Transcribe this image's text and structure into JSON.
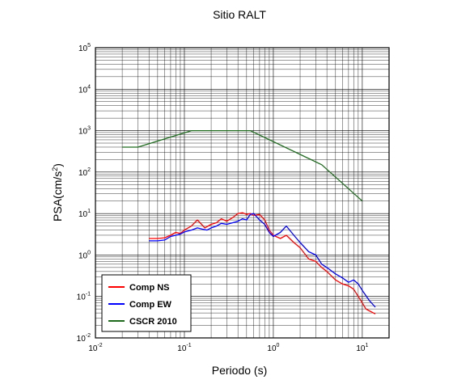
{
  "chart_data": {
    "type": "line",
    "title": "Sitio RALT",
    "xlabel": "Periodo (s)",
    "ylabel": {
      "base": "PSA(cm/s",
      "sup": "2",
      "close": ")"
    },
    "x_scale": "log",
    "y_scale": "log",
    "xlim": [
      0.01,
      20
    ],
    "ylim": [
      0.01,
      100000
    ],
    "grid": true,
    "legend_position": "bottom-left",
    "x_ticks": [
      {
        "base": "10",
        "exp": "-2",
        "value": 0.01
      },
      {
        "base": "10",
        "exp": "-1",
        "value": 0.1
      },
      {
        "base": "10",
        "exp": "0",
        "value": 1
      },
      {
        "base": "10",
        "exp": "1",
        "value": 10
      }
    ],
    "y_ticks": [
      {
        "base": "10",
        "exp": "-2",
        "value": 0.01
      },
      {
        "base": "10",
        "exp": "-1",
        "value": 0.1
      },
      {
        "base": "10",
        "exp": "0",
        "value": 1
      },
      {
        "base": "10",
        "exp": "1",
        "value": 10
      },
      {
        "base": "10",
        "exp": "2",
        "value": 100
      },
      {
        "base": "10",
        "exp": "3",
        "value": 1000
      },
      {
        "base": "10",
        "exp": "4",
        "value": 10000
      },
      {
        "base": "10",
        "exp": "5",
        "value": 100000
      }
    ],
    "series": [
      {
        "name": "Comp NS",
        "color": "#ff0000",
        "x": [
          0.04,
          0.05,
          0.06,
          0.07,
          0.08,
          0.09,
          0.1,
          0.12,
          0.14,
          0.15,
          0.17,
          0.2,
          0.23,
          0.26,
          0.3,
          0.35,
          0.4,
          0.45,
          0.5,
          0.55,
          0.6,
          0.7,
          0.8,
          0.9,
          1.0,
          1.2,
          1.4,
          1.7,
          2.0,
          2.5,
          3.0,
          3.5,
          4.0,
          5.0,
          6.0,
          7.0,
          8.0,
          9.0,
          10.0,
          11.0,
          12.0,
          14.0
        ],
        "y": [
          2.5,
          2.5,
          2.6,
          3.0,
          3.5,
          3.3,
          4.0,
          5.0,
          7.0,
          6.0,
          4.5,
          5.5,
          6.0,
          7.5,
          6.5,
          8.0,
          10.0,
          10.5,
          9.5,
          10.0,
          9.0,
          9.5,
          7.0,
          4.0,
          3.0,
          2.5,
          3.0,
          2.0,
          1.5,
          0.8,
          0.7,
          0.5,
          0.4,
          0.25,
          0.2,
          0.18,
          0.15,
          0.1,
          0.07,
          0.05,
          0.045,
          0.038
        ]
      },
      {
        "name": "Comp EW",
        "color": "#0000ff",
        "x": [
          0.04,
          0.05,
          0.06,
          0.07,
          0.08,
          0.09,
          0.1,
          0.12,
          0.14,
          0.16,
          0.18,
          0.2,
          0.23,
          0.26,
          0.3,
          0.35,
          0.4,
          0.45,
          0.5,
          0.55,
          0.6,
          0.7,
          0.8,
          0.9,
          1.0,
          1.2,
          1.4,
          1.7,
          2.0,
          2.5,
          3.0,
          3.5,
          4.0,
          5.0,
          6.0,
          7.0,
          8.0,
          9.0,
          10.0,
          12.0,
          14.0
        ],
        "y": [
          2.2,
          2.2,
          2.3,
          2.8,
          3.0,
          3.2,
          3.6,
          4.0,
          4.5,
          4.2,
          4.0,
          4.5,
          5.0,
          5.8,
          5.5,
          6.0,
          6.5,
          7.5,
          7.0,
          9.5,
          10.0,
          7.0,
          5.5,
          3.5,
          2.8,
          3.5,
          5.0,
          3.0,
          2.0,
          1.2,
          1.0,
          0.6,
          0.5,
          0.35,
          0.28,
          0.22,
          0.25,
          0.2,
          0.14,
          0.08,
          0.055
        ]
      },
      {
        "name": "CSCR 2010",
        "color": "#1e6b1e",
        "x": [
          0.02,
          0.03,
          0.12,
          0.55,
          3.5,
          10.0
        ],
        "y": [
          400,
          400,
          1000,
          1000,
          150,
          20
        ]
      }
    ]
  }
}
